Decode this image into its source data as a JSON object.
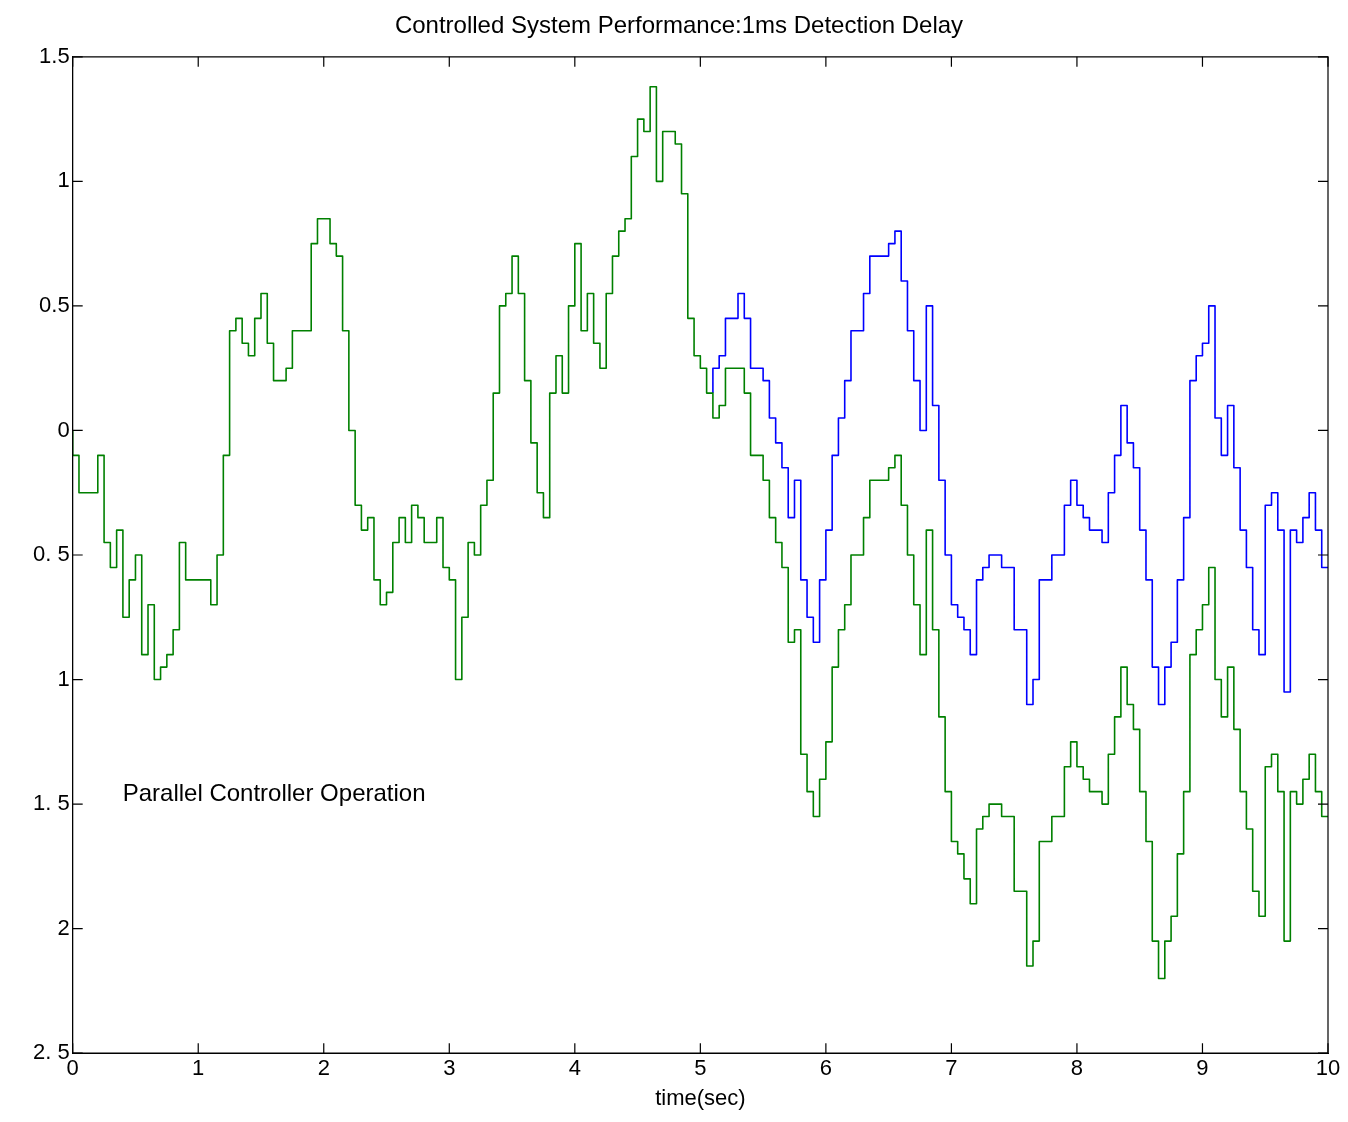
{
  "chart_data": {
    "type": "step",
    "title": "Controlled System Performance:1ms Detection Delay",
    "xlabel": "time(sec)",
    "annotations": [
      "Parallel Controller Operation"
    ],
    "x": [
      0,
      0.05,
      0.1,
      0.2,
      0.25,
      0.3,
      0.35,
      0.4,
      0.45,
      0.5,
      0.55,
      0.6,
      0.65,
      0.7,
      0.75,
      0.8,
      0.85,
      0.9,
      0.95,
      1.0,
      1.1,
      1.15,
      1.2,
      1.25,
      1.3,
      1.35,
      1.4,
      1.45,
      1.5,
      1.55,
      1.6,
      1.65,
      1.7,
      1.75,
      1.8,
      1.9,
      1.95,
      2.0,
      2.05,
      2.1,
      2.15,
      2.2,
      2.25,
      2.3,
      2.35,
      2.4,
      2.45,
      2.5,
      2.55,
      2.6,
      2.65,
      2.7,
      2.75,
      2.8,
      2.9,
      2.95,
      3.0,
      3.05,
      3.1,
      3.15,
      3.2,
      3.25,
      3.3,
      3.35,
      3.4,
      3.45,
      3.5,
      3.55,
      3.6,
      3.65,
      3.7,
      3.75,
      3.8,
      3.85,
      3.9,
      3.95,
      4.0,
      4.05,
      4.1,
      4.15,
      4.2,
      4.25,
      4.3,
      4.35,
      4.4,
      4.45,
      4.5,
      4.55,
      4.6,
      4.65,
      4.7,
      4.75,
      4.8,
      4.85,
      4.9,
      4.95,
      5.0,
      5.05,
      5.1,
      5.15,
      5.2,
      5.3,
      5.35,
      5.4,
      5.5,
      5.55,
      5.6,
      5.65,
      5.7,
      5.75,
      5.8,
      5.85,
      5.9,
      5.95,
      6.0,
      6.05,
      6.1,
      6.15,
      6.2,
      6.3,
      6.35,
      6.4,
      6.5,
      6.55,
      6.6,
      6.65,
      6.7,
      6.75,
      6.8,
      6.85,
      6.9,
      6.95,
      7.0,
      7.05,
      7.1,
      7.15,
      7.2,
      7.25,
      7.3,
      7.4,
      7.5,
      7.6,
      7.65,
      7.7,
      7.8,
      7.9,
      7.95,
      8.0,
      8.05,
      8.1,
      8.15,
      8.2,
      8.25,
      8.3,
      8.35,
      8.4,
      8.45,
      8.5,
      8.55,
      8.6,
      8.65,
      8.7,
      8.75,
      8.8,
      8.85,
      8.9,
      8.95,
      9.0,
      9.05,
      9.1,
      9.15,
      9.2,
      9.25,
      9.3,
      9.35,
      9.4,
      9.45,
      9.5,
      9.55,
      9.6,
      9.65,
      9.7,
      9.75,
      9.8,
      9.85,
      9.9,
      9.95,
      10.0
    ],
    "series": [
      {
        "color": "#0000ff",
        "x": [
          5.1,
          5.15,
          5.2,
          5.3,
          5.35,
          5.4,
          5.5,
          5.55,
          5.6,
          5.65,
          5.7,
          5.75,
          5.8,
          5.85,
          5.9,
          5.95,
          6.0,
          6.05,
          6.1,
          6.15,
          6.2,
          6.3,
          6.35,
          6.4,
          6.5,
          6.55,
          6.6,
          6.65,
          6.7,
          6.75,
          6.8,
          6.85,
          6.9,
          6.95,
          7.0,
          7.05,
          7.1,
          7.15,
          7.2,
          7.25,
          7.3,
          7.4,
          7.5,
          7.6,
          7.65,
          7.7,
          7.8,
          7.9,
          7.95,
          8.0,
          8.05,
          8.1,
          8.15,
          8.2,
          8.25,
          8.3,
          8.35,
          8.4,
          8.45,
          8.5,
          8.55,
          8.6,
          8.65,
          8.7,
          8.75,
          8.8,
          8.85,
          8.9,
          8.95,
          9.0,
          9.05,
          9.1,
          9.15,
          9.2,
          9.25,
          9.3,
          9.35,
          9.4,
          9.45,
          9.5,
          9.55,
          9.6,
          9.65,
          9.7,
          9.75,
          9.8,
          9.85,
          9.9,
          9.95,
          10.0
        ],
        "values": [
          0.15,
          0.25,
          0.3,
          0.45,
          0.55,
          0.45,
          0.25,
          0.2,
          0.05,
          -0.05,
          -0.15,
          -0.35,
          -0.2,
          -0.6,
          -0.75,
          -0.85,
          -0.6,
          -0.4,
          -0.1,
          0.05,
          0.2,
          0.4,
          0.55,
          0.7,
          0.7,
          0.75,
          0.8,
          0.6,
          0.4,
          0.2,
          0.0,
          0.5,
          0.1,
          -0.2,
          -0.5,
          -0.7,
          -0.75,
          -0.8,
          -0.9,
          -0.6,
          -0.55,
          -0.5,
          -0.55,
          -0.8,
          -1.1,
          -1.0,
          -0.6,
          -0.5,
          -0.3,
          -0.2,
          -0.3,
          -0.35,
          -0.4,
          -0.4,
          -0.45,
          -0.25,
          -0.1,
          0.1,
          -0.05,
          -0.15,
          -0.4,
          -0.6,
          -0.95,
          -1.1,
          -0.95,
          -0.85,
          -0.6,
          -0.35,
          0.2,
          0.3,
          0.35,
          0.5,
          0.05,
          -0.1,
          0.1,
          -0.15,
          -0.4,
          -0.55,
          -0.8,
          -0.9,
          -0.3,
          -0.25,
          -0.4,
          -1.05,
          -0.4,
          -0.45,
          -0.35,
          -0.25,
          -0.4,
          -0.55
        ]
      },
      {
        "color": "#008000",
        "values": [
          0,
          -0.1,
          -0.25,
          -0.25,
          -0.1,
          -0.45,
          -0.55,
          -0.4,
          -0.75,
          -0.6,
          -0.5,
          -0.9,
          -0.7,
          -1.0,
          -0.95,
          -0.9,
          -0.8,
          -0.45,
          -0.6,
          -0.6,
          -0.6,
          -0.7,
          -0.5,
          -0.1,
          0.4,
          0.45,
          0.35,
          0.3,
          0.45,
          0.55,
          0.35,
          0.2,
          0.2,
          0.25,
          0.4,
          0.4,
          0.75,
          0.85,
          0.85,
          0.75,
          0.7,
          0.4,
          0.0,
          -0.3,
          -0.4,
          -0.35,
          -0.6,
          -0.7,
          -0.65,
          -0.45,
          -0.35,
          -0.45,
          -0.3,
          -0.35,
          -0.45,
          -0.35,
          -0.55,
          -0.6,
          -1.0,
          -0.75,
          -0.45,
          -0.5,
          -0.3,
          -0.2,
          0.15,
          0.5,
          0.55,
          0.7,
          0.55,
          0.2,
          -0.05,
          -0.25,
          -0.35,
          0.15,
          0.3,
          0.15,
          0.5,
          0.75,
          0.4,
          0.55,
          0.35,
          0.25,
          0.55,
          0.7,
          0.8,
          0.85,
          1.1,
          1.25,
          1.2,
          1.38,
          1.0,
          1.2,
          1.2,
          1.15,
          0.95,
          0.45,
          0.3,
          0.25,
          0.15,
          0.05,
          0.1,
          0.25,
          0.25,
          0.15,
          -0.1,
          -0.2,
          -0.35,
          -0.45,
          -0.55,
          -0.85,
          -0.8,
          -1.3,
          -1.45,
          -1.55,
          -1.4,
          -1.25,
          -0.95,
          -0.8,
          -0.7,
          -0.5,
          -0.35,
          -0.2,
          -0.2,
          -0.15,
          -0.1,
          -0.3,
          -0.5,
          -0.7,
          -0.9,
          -0.4,
          -0.8,
          -1.15,
          -1.45,
          -1.65,
          -1.7,
          -1.8,
          -1.9,
          -1.6,
          -1.55,
          -1.5,
          -1.55,
          -1.85,
          -2.15,
          -2.05,
          -1.65,
          -1.55,
          -1.35,
          -1.25,
          -1.35,
          -1.4,
          -1.45,
          -1.45,
          -1.5,
          -1.3,
          -1.15,
          -0.95,
          -1.1,
          -1.2,
          -1.45,
          -1.65,
          -2.05,
          -2.2,
          -2.05,
          -1.95,
          -1.7,
          -1.45,
          -0.9,
          -0.8,
          -0.7,
          -0.55,
          -1.0,
          -1.15,
          -0.95,
          -1.2,
          -1.45,
          -1.6,
          -1.85,
          -1.95,
          -1.35,
          -1.3,
          -1.45,
          -2.05,
          -1.45,
          -1.5,
          -1.4,
          -1.3,
          -1.45,
          -1.55
        ]
      }
    ],
    "xlim": [
      0,
      10
    ],
    "xticks": [
      0,
      1,
      2,
      3,
      4,
      5,
      6,
      7,
      8,
      9,
      10
    ],
    "ylim": [
      -2.5,
      1.5
    ],
    "yticks": [
      {
        "value": -2.5,
        "label": "2. 5"
      },
      {
        "value": -2,
        "label": "2"
      },
      {
        "value": -1.5,
        "label": "1. 5"
      },
      {
        "value": -1,
        "label": "1"
      },
      {
        "value": -0.5,
        "label": "0. 5"
      },
      0,
      0.5,
      1,
      1.5
    ],
    "grid": false,
    "legend": false,
    "marker": "none",
    "line_style": "solid"
  }
}
